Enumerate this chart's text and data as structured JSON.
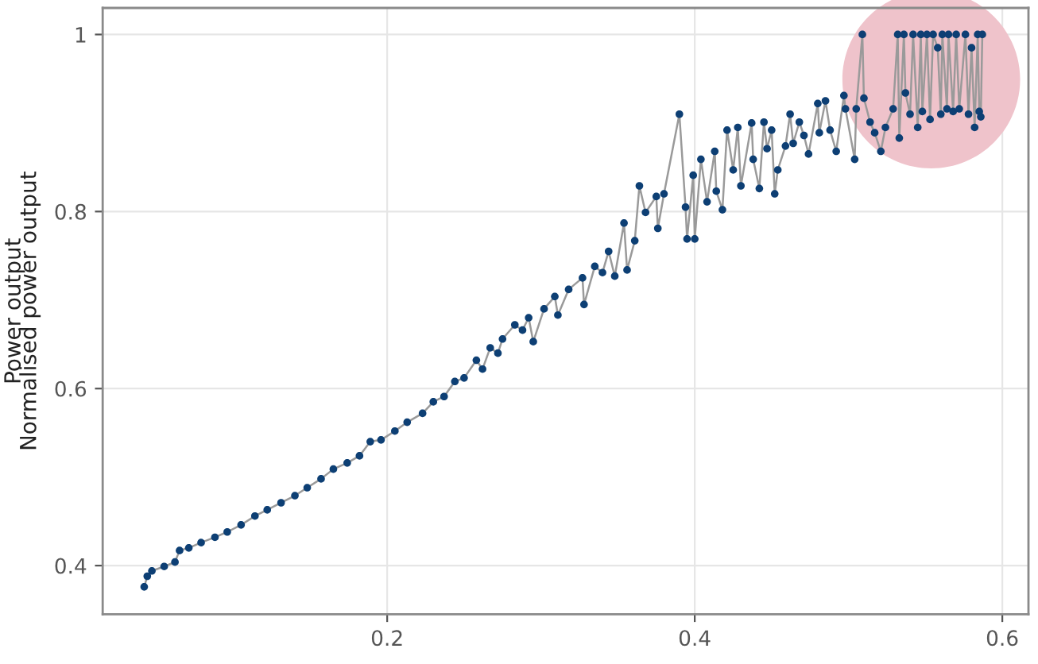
{
  "chart_data": {
    "type": "line",
    "ylabel": "Normalised power output",
    "annotations": [
      "Power output"
    ],
    "x": [
      0.042,
      0.044,
      0.047,
      0.055,
      0.062,
      0.065,
      0.071,
      0.079,
      0.088,
      0.096,
      0.105,
      0.114,
      0.122,
      0.131,
      0.14,
      0.148,
      0.157,
      0.165,
      0.174,
      0.182,
      0.189,
      0.196,
      0.205,
      0.213,
      0.223,
      0.23,
      0.237,
      0.244,
      0.25,
      0.258,
      0.262,
      0.267,
      0.272,
      0.275,
      0.283,
      0.288,
      0.292,
      0.295,
      0.302,
      0.309,
      0.311,
      0.318,
      0.327,
      0.328,
      0.335,
      0.34,
      0.344,
      0.348,
      0.354,
      0.356,
      0.361,
      0.364,
      0.368,
      0.375,
      0.376,
      0.38,
      0.39,
      0.394,
      0.395,
      0.399,
      0.4,
      0.404,
      0.408,
      0.413,
      0.414,
      0.418,
      0.421,
      0.425,
      0.428,
      0.43,
      0.437,
      0.438,
      0.442,
      0.445,
      0.447,
      0.45,
      0.452,
      0.454,
      0.459,
      0.462,
      0.464,
      0.468,
      0.471,
      0.474,
      0.48,
      0.481,
      0.485,
      0.488,
      0.492,
      0.497,
      0.498,
      0.504,
      0.505,
      0.509,
      0.51,
      0.514,
      0.517,
      0.521,
      0.524,
      0.529,
      0.532,
      0.533,
      0.536,
      0.537,
      0.54,
      0.542,
      0.545,
      0.547,
      0.548,
      0.551,
      0.553,
      0.555,
      0.558,
      0.56,
      0.561,
      0.564,
      0.565,
      0.568,
      0.57,
      0.572,
      0.576,
      0.578,
      0.58,
      0.582,
      0.584,
      0.585,
      0.586,
      0.587
    ],
    "series": [
      {
        "color": "#9a9a9a",
        "marker": "none",
        "values": [
          0.376,
          0.388,
          0.394,
          0.399,
          0.404,
          0.417,
          0.42,
          0.426,
          0.432,
          0.438,
          0.446,
          0.456,
          0.463,
          0.471,
          0.479,
          0.488,
          0.498,
          0.509,
          0.516,
          0.524,
          0.54,
          0.542,
          0.552,
          0.562,
          0.572,
          0.585,
          0.591,
          0.608,
          0.612,
          0.632,
          0.622,
          0.646,
          0.64,
          0.656,
          0.672,
          0.666,
          0.68,
          0.653,
          0.69,
          0.704,
          0.683,
          0.712,
          0.725,
          0.695,
          0.738,
          0.731,
          0.755,
          0.727,
          0.787,
          0.734,
          0.767,
          0.829,
          0.799,
          0.817,
          0.781,
          0.82,
          0.91,
          0.805,
          0.769,
          0.841,
          0.769,
          0.859,
          0.811,
          0.868,
          0.823,
          0.802,
          0.892,
          0.847,
          0.895,
          0.829,
          0.9,
          0.859,
          0.826,
          0.901,
          0.871,
          0.892,
          0.82,
          0.847,
          0.874,
          0.91,
          0.877,
          0.901,
          0.886,
          0.865,
          0.922,
          0.889,
          0.925,
          0.892,
          0.868,
          0.931,
          0.916,
          0.859,
          0.916,
          1.0,
          0.928,
          0.901,
          0.889,
          0.868,
          0.895,
          0.916,
          1.0,
          0.883,
          1.0,
          0.934,
          0.91,
          1.0,
          0.895,
          1.0,
          0.913,
          1.0,
          0.904,
          1.0,
          0.985,
          0.91,
          1.0,
          0.916,
          1.0,
          0.913,
          1.0,
          0.916,
          1.0,
          0.91,
          0.985,
          0.895,
          1.0,
          0.913,
          0.907,
          1.0
        ]
      },
      {
        "type": "scatter",
        "color": "#0d3f74",
        "values": [
          0.376,
          0.388,
          0.394,
          0.399,
          0.404,
          0.417,
          0.42,
          0.426,
          0.432,
          0.438,
          0.446,
          0.456,
          0.463,
          0.471,
          0.479,
          0.488,
          0.498,
          0.509,
          0.516,
          0.524,
          0.54,
          0.542,
          0.552,
          0.562,
          0.572,
          0.585,
          0.591,
          0.608,
          0.612,
          0.632,
          0.622,
          0.646,
          0.64,
          0.656,
          0.672,
          0.666,
          0.68,
          0.653,
          0.69,
          0.704,
          0.683,
          0.712,
          0.725,
          0.695,
          0.738,
          0.731,
          0.755,
          0.727,
          0.787,
          0.734,
          0.767,
          0.829,
          0.799,
          0.817,
          0.781,
          0.82,
          0.91,
          0.805,
          0.769,
          0.841,
          0.769,
          0.859,
          0.811,
          0.868,
          0.823,
          0.802,
          0.892,
          0.847,
          0.895,
          0.829,
          0.9,
          0.859,
          0.826,
          0.901,
          0.871,
          0.892,
          0.82,
          0.847,
          0.874,
          0.91,
          0.877,
          0.901,
          0.886,
          0.865,
          0.922,
          0.889,
          0.925,
          0.892,
          0.868,
          0.931,
          0.916,
          0.859,
          0.916,
          1.0,
          0.928,
          0.901,
          0.889,
          0.868,
          0.895,
          0.916,
          1.0,
          0.883,
          1.0,
          0.934,
          0.91,
          1.0,
          0.895,
          1.0,
          0.913,
          1.0,
          0.904,
          1.0,
          0.985,
          0.91,
          1.0,
          0.916,
          1.0,
          0.913,
          1.0,
          0.916,
          1.0,
          0.91,
          0.985,
          0.895,
          1.0,
          0.913,
          0.907,
          1.0
        ]
      }
    ],
    "marker": "circle",
    "line_style": "solid",
    "xlim": [
      0.015,
      0.617
    ],
    "ylim": [
      0.345,
      1.03
    ],
    "xticks": [
      0.2,
      0.4,
      0.6
    ],
    "yticks": [
      0.4,
      0.6,
      0.8,
      1
    ],
    "grid": true
  }
}
